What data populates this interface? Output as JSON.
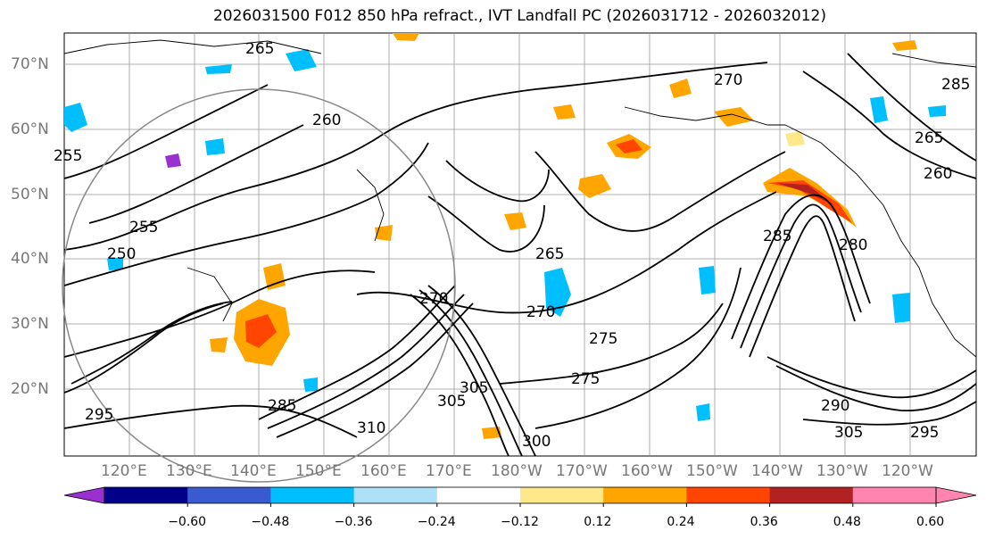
{
  "title": "2026031500 F012 850 hPa refract., IVT Landfall PC (2026031712 - 2026032012)",
  "map": {
    "lat_labels": [
      "70°N",
      "60°N",
      "50°N",
      "40°N",
      "30°N",
      "20°N"
    ],
    "lon_labels": [
      "120°E",
      "130°E",
      "140°E",
      "150°E",
      "160°E",
      "170°E",
      "180°W",
      "170°W",
      "160°W",
      "150°W",
      "140°W",
      "130°W",
      "120°W"
    ],
    "contour_labels": [
      "265",
      "270",
      "265",
      "260",
      "255",
      "265",
      "270",
      "270",
      "260",
      "255",
      "250",
      "275",
      "285",
      "275",
      "285",
      "305",
      "310",
      "300",
      "305",
      "295",
      "290",
      "280",
      "285",
      "305",
      "295"
    ],
    "grid": true,
    "coastline_color": "#000000"
  },
  "colorbar": {
    "ticks": [
      "−0.60",
      "−0.48",
      "−0.36",
      "−0.24",
      "−0.12",
      "0.12",
      "0.24",
      "0.36",
      "0.48",
      "0.60"
    ],
    "colors": [
      "#9b30d0",
      "#00008b",
      "#3a5bd0",
      "#00bfff",
      "#aee0f8",
      "#ffffff",
      "#ffe88a",
      "#ffa500",
      "#ff4500",
      "#b22222",
      "#ff85b0",
      "#ff85b0"
    ]
  }
}
